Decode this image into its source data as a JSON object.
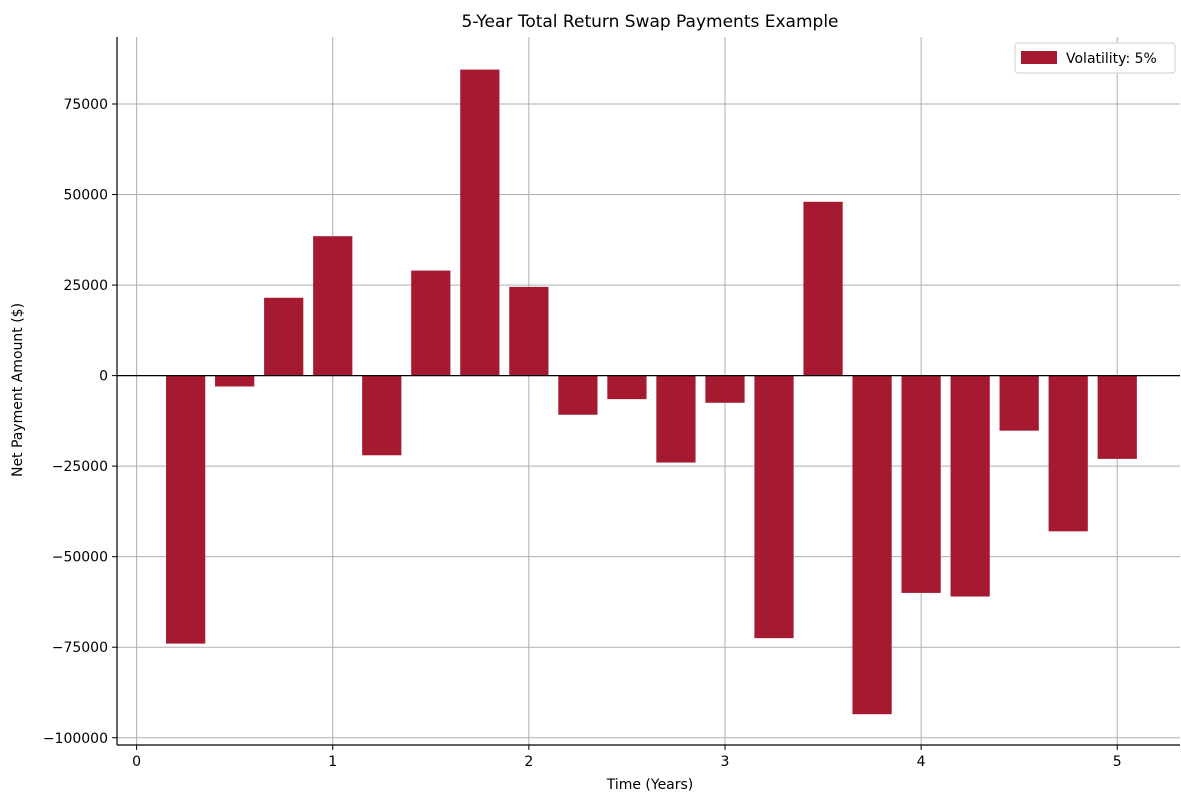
{
  "chart_data": {
    "type": "bar",
    "title": "5-Year Total Return Swap Payments Example",
    "xlabel": "Time (Years)",
    "ylabel": "Net Payment Amount ($)",
    "xlim": [
      -0.1,
      5.32
    ],
    "ylim": [
      -102000,
      93500
    ],
    "xticks": [
      0,
      1,
      2,
      3,
      4,
      5
    ],
    "xtick_labels": [
      "0",
      "1",
      "2",
      "3",
      "4",
      "5"
    ],
    "yticks": [
      -100000,
      -75000,
      -50000,
      -25000,
      0,
      25000,
      50000,
      75000
    ],
    "ytick_labels": [
      "−100000",
      "−75000",
      "−50000",
      "−25000",
      "0",
      "25000",
      "50000",
      "75000"
    ],
    "grid": true,
    "legend_position": "top-right",
    "bar_width_years": 0.2,
    "series": [
      {
        "name": "Volatility: 5%",
        "color": "#a51931",
        "x": [
          0.25,
          0.5,
          0.75,
          1.0,
          1.25,
          1.5,
          1.75,
          2.0,
          2.25,
          2.5,
          2.75,
          3.0,
          3.25,
          3.5,
          3.75,
          4.0,
          4.25,
          4.5,
          4.75,
          5.0
        ],
        "values": [
          -74000,
          -3000,
          21500,
          38500,
          -22000,
          29000,
          84500,
          24500,
          -10800,
          -6500,
          -24000,
          -7500,
          -72500,
          48000,
          -93500,
          -60000,
          -61000,
          -15200,
          -43000,
          -23000
        ]
      }
    ]
  }
}
